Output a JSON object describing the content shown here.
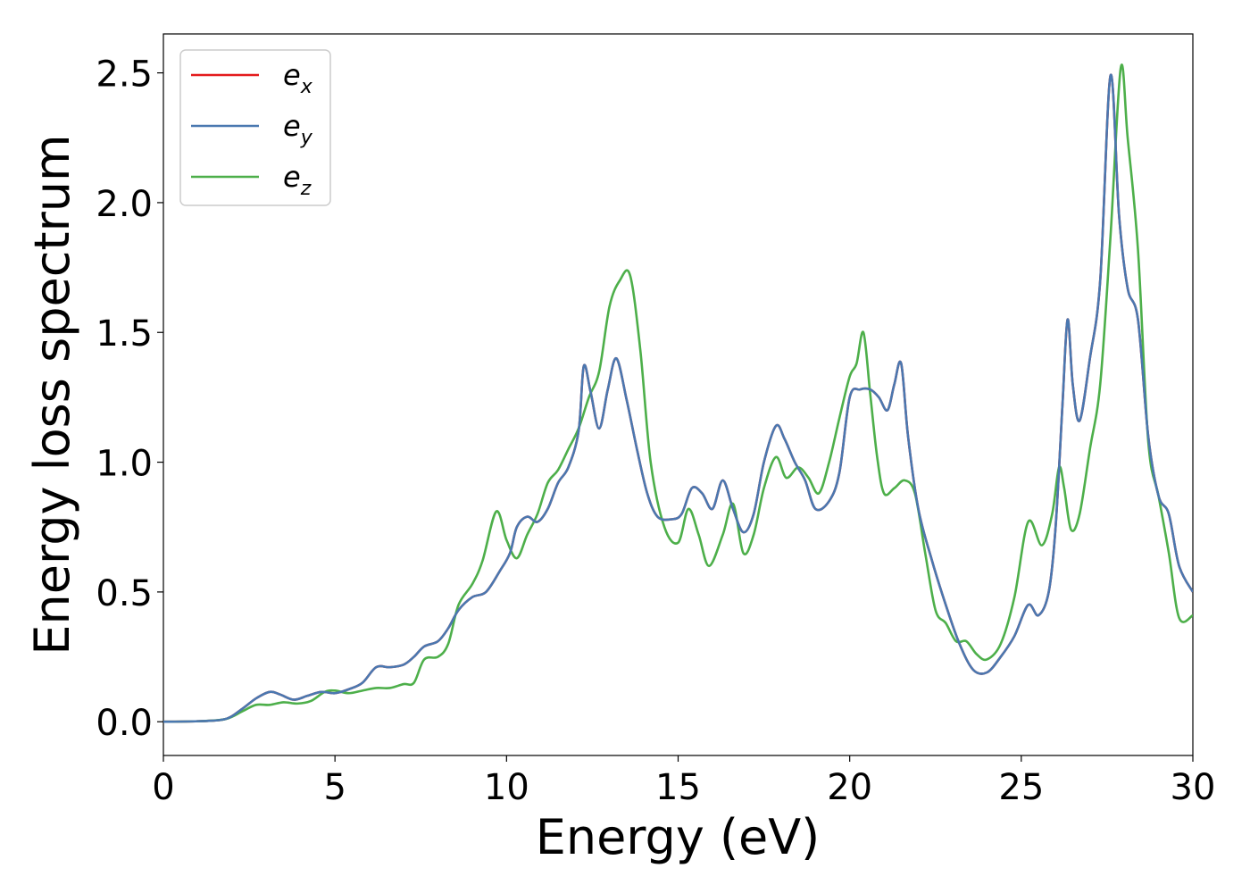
{
  "chart_data": {
    "type": "line",
    "xlabel": "Energy (eV)",
    "ylabel": "Energy loss spectrum",
    "xlim": [
      0,
      30
    ],
    "ylim": [
      -0.13,
      2.65
    ],
    "xticks": [
      "0",
      "5",
      "10",
      "15",
      "20",
      "25",
      "30"
    ],
    "yticks": [
      "0.0",
      "0.5",
      "1.0",
      "1.5",
      "2.0",
      "2.5"
    ],
    "grid": false,
    "legend_position": "top-left",
    "series": [
      {
        "name": "e_x",
        "label_base": "e",
        "label_sub": "x",
        "color": "#e41a1c",
        "x": [
          0,
          1,
          1.8,
          2.3,
          2.7,
          3.1,
          3.4,
          3.8,
          4.2,
          4.6,
          5.0,
          5.4,
          5.8,
          6.2,
          6.6,
          7.0,
          7.3,
          7.6,
          8.0,
          8.3,
          8.6,
          9.0,
          9.4,
          9.8,
          10.1,
          10.3,
          10.6,
          10.9,
          11.2,
          11.5,
          11.8,
          12.1,
          12.25,
          12.45,
          12.7,
          12.95,
          13.2,
          13.5,
          13.8,
          14.1,
          14.4,
          14.8,
          15.1,
          15.4,
          15.7,
          16.0,
          16.3,
          16.6,
          16.9,
          17.2,
          17.5,
          17.85,
          18.1,
          18.4,
          18.7,
          19.0,
          19.4,
          19.7,
          20.0,
          20.3,
          20.6,
          20.85,
          21.1,
          21.3,
          21.5,
          21.7,
          22.0,
          22.4,
          22.8,
          23.2,
          23.6,
          24.0,
          24.4,
          24.8,
          25.2,
          25.5,
          25.8,
          26.0,
          26.2,
          26.35,
          26.5,
          26.7,
          27.0,
          27.3,
          27.6,
          27.85,
          28.1,
          28.4,
          28.7,
          29.0,
          29.3,
          29.6,
          30.0
        ],
        "values": [
          0,
          0.002,
          0.01,
          0.05,
          0.09,
          0.115,
          0.105,
          0.085,
          0.1,
          0.115,
          0.11,
          0.125,
          0.15,
          0.21,
          0.21,
          0.22,
          0.25,
          0.29,
          0.31,
          0.36,
          0.43,
          0.48,
          0.5,
          0.58,
          0.65,
          0.75,
          0.79,
          0.77,
          0.82,
          0.92,
          0.98,
          1.12,
          1.37,
          1.27,
          1.13,
          1.28,
          1.4,
          1.24,
          1.05,
          0.88,
          0.79,
          0.78,
          0.8,
          0.9,
          0.88,
          0.82,
          0.93,
          0.82,
          0.73,
          0.8,
          1.0,
          1.14,
          1.09,
          1.0,
          0.93,
          0.82,
          0.85,
          0.96,
          1.25,
          1.28,
          1.28,
          1.25,
          1.2,
          1.3,
          1.38,
          1.1,
          0.82,
          0.62,
          0.45,
          0.3,
          0.2,
          0.19,
          0.25,
          0.33,
          0.45,
          0.41,
          0.5,
          0.75,
          1.22,
          1.55,
          1.3,
          1.16,
          1.4,
          1.7,
          2.49,
          1.95,
          1.67,
          1.55,
          1.1,
          0.87,
          0.8,
          0.6,
          0.5
        ]
      },
      {
        "name": "e_y",
        "label_base": "e",
        "label_sub": "y",
        "color": "#4a78b0",
        "x": [
          0,
          1,
          1.8,
          2.3,
          2.7,
          3.1,
          3.4,
          3.8,
          4.2,
          4.6,
          5.0,
          5.4,
          5.8,
          6.2,
          6.6,
          7.0,
          7.3,
          7.6,
          8.0,
          8.3,
          8.6,
          9.0,
          9.4,
          9.8,
          10.1,
          10.3,
          10.6,
          10.9,
          11.2,
          11.5,
          11.8,
          12.1,
          12.25,
          12.45,
          12.7,
          12.95,
          13.2,
          13.5,
          13.8,
          14.1,
          14.4,
          14.8,
          15.1,
          15.4,
          15.7,
          16.0,
          16.3,
          16.6,
          16.9,
          17.2,
          17.5,
          17.85,
          18.1,
          18.4,
          18.7,
          19.0,
          19.4,
          19.7,
          20.0,
          20.3,
          20.6,
          20.85,
          21.1,
          21.3,
          21.5,
          21.7,
          22.0,
          22.4,
          22.8,
          23.2,
          23.6,
          24.0,
          24.4,
          24.8,
          25.2,
          25.5,
          25.8,
          26.0,
          26.2,
          26.35,
          26.5,
          26.7,
          27.0,
          27.3,
          27.6,
          27.85,
          28.1,
          28.4,
          28.7,
          29.0,
          29.3,
          29.6,
          30.0
        ],
        "values": [
          0,
          0.002,
          0.01,
          0.05,
          0.09,
          0.115,
          0.105,
          0.085,
          0.1,
          0.115,
          0.11,
          0.125,
          0.15,
          0.21,
          0.21,
          0.22,
          0.25,
          0.29,
          0.31,
          0.36,
          0.43,
          0.48,
          0.5,
          0.58,
          0.65,
          0.75,
          0.79,
          0.77,
          0.82,
          0.92,
          0.98,
          1.12,
          1.37,
          1.27,
          1.13,
          1.28,
          1.4,
          1.24,
          1.05,
          0.88,
          0.79,
          0.78,
          0.8,
          0.9,
          0.88,
          0.82,
          0.93,
          0.82,
          0.73,
          0.8,
          1.0,
          1.14,
          1.09,
          1.0,
          0.93,
          0.82,
          0.85,
          0.96,
          1.25,
          1.28,
          1.28,
          1.25,
          1.2,
          1.3,
          1.38,
          1.1,
          0.82,
          0.62,
          0.45,
          0.3,
          0.2,
          0.19,
          0.25,
          0.33,
          0.45,
          0.41,
          0.5,
          0.75,
          1.22,
          1.55,
          1.3,
          1.16,
          1.4,
          1.7,
          2.49,
          1.95,
          1.67,
          1.55,
          1.1,
          0.87,
          0.8,
          0.6,
          0.5
        ]
      },
      {
        "name": "e_z",
        "label_base": "e",
        "label_sub": "z",
        "color": "#4daf4a",
        "x": [
          0,
          1,
          1.8,
          2.3,
          2.7,
          3.1,
          3.5,
          3.9,
          4.3,
          4.7,
          5.0,
          5.4,
          5.8,
          6.2,
          6.6,
          7.0,
          7.3,
          7.6,
          8.0,
          8.3,
          8.6,
          9.0,
          9.3,
          9.7,
          10.0,
          10.3,
          10.6,
          10.9,
          11.2,
          11.5,
          11.8,
          12.1,
          12.4,
          12.7,
          13.0,
          13.3,
          13.6,
          13.9,
          14.2,
          14.6,
          15.0,
          15.3,
          15.6,
          15.9,
          16.3,
          16.6,
          16.9,
          17.2,
          17.5,
          17.85,
          18.15,
          18.5,
          18.8,
          19.1,
          19.4,
          19.7,
          20.0,
          20.2,
          20.4,
          20.6,
          20.8,
          21.0,
          21.3,
          21.6,
          21.9,
          22.2,
          22.5,
          22.8,
          23.1,
          23.4,
          23.7,
          24.0,
          24.4,
          24.8,
          25.2,
          25.6,
          25.9,
          26.1,
          26.25,
          26.45,
          26.7,
          27.0,
          27.3,
          27.6,
          27.9,
          28.1,
          28.4,
          28.7,
          29.0,
          29.3,
          29.6,
          30.0
        ],
        "values": [
          0,
          0.002,
          0.01,
          0.04,
          0.065,
          0.065,
          0.075,
          0.07,
          0.08,
          0.115,
          0.12,
          0.11,
          0.12,
          0.13,
          0.13,
          0.145,
          0.15,
          0.24,
          0.25,
          0.3,
          0.45,
          0.53,
          0.62,
          0.81,
          0.7,
          0.63,
          0.72,
          0.8,
          0.92,
          0.97,
          1.05,
          1.13,
          1.25,
          1.35,
          1.6,
          1.7,
          1.72,
          1.43,
          1.0,
          0.75,
          0.69,
          0.82,
          0.72,
          0.6,
          0.72,
          0.84,
          0.65,
          0.72,
          0.9,
          1.02,
          0.94,
          0.98,
          0.94,
          0.88,
          1.0,
          1.17,
          1.33,
          1.38,
          1.5,
          1.26,
          1.02,
          0.88,
          0.9,
          0.93,
          0.88,
          0.65,
          0.43,
          0.38,
          0.31,
          0.31,
          0.26,
          0.24,
          0.3,
          0.48,
          0.77,
          0.68,
          0.8,
          0.98,
          0.9,
          0.74,
          0.8,
          1.05,
          1.3,
          1.87,
          2.52,
          2.25,
          1.82,
          1.08,
          0.87,
          0.65,
          0.4,
          0.41
        ]
      }
    ]
  }
}
